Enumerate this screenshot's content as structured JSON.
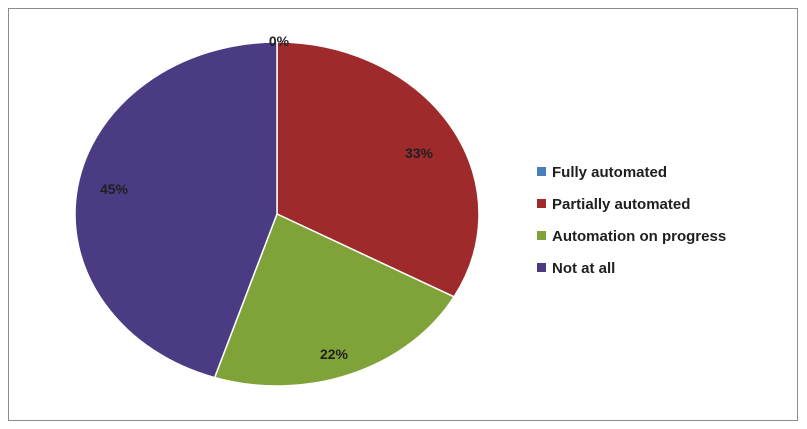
{
  "chart_data": {
    "type": "pie",
    "categories": [
      "Fully automated",
      "Partially automated",
      "Automation on progress",
      "Not at all"
    ],
    "values": [
      0,
      33,
      22,
      45
    ],
    "labels": [
      "0%",
      "33%",
      "22%",
      "45%"
    ],
    "colors": [
      "#4a7ebb",
      "#9e2a2b",
      "#7fa339",
      "#4b3b83"
    ],
    "title": "",
    "legend_position": "right"
  }
}
